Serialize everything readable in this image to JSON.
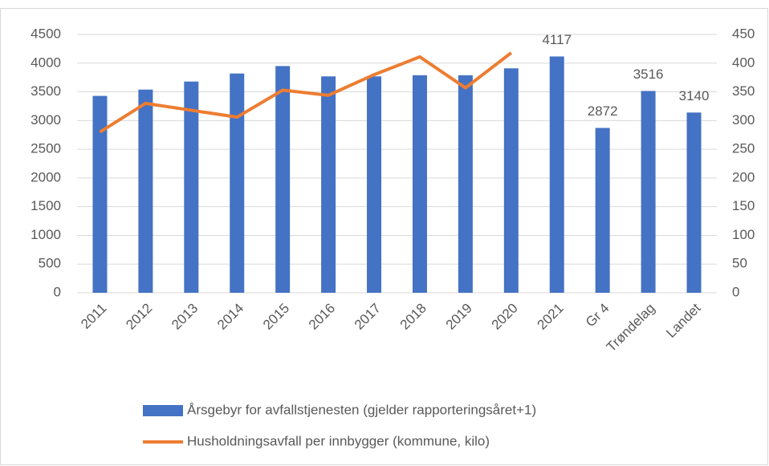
{
  "chart_data": {
    "type": "bar-line",
    "categories": [
      "2011",
      "2012",
      "2013",
      "2014",
      "2015",
      "2016",
      "2017",
      "2018",
      "2019",
      "2020",
      "2021",
      "Gr 4",
      "Trøndelag",
      "Landet"
    ],
    "series": [
      {
        "name": "Årsgebyr for avfallstjenesten (gjelder rapporteringsåret+1)",
        "type": "bar",
        "color": "#4472c4",
        "values": [
          3430,
          3540,
          3680,
          3820,
          3950,
          3770,
          3770,
          3790,
          3790,
          3910,
          4117,
          2872,
          3516,
          3140
        ],
        "value_labels": [
          null,
          null,
          null,
          null,
          null,
          null,
          null,
          null,
          null,
          null,
          "4117",
          "2872",
          "3516",
          "3140"
        ]
      },
      {
        "name": "Husholdningsavfall per innbygger (kommune, kilo)",
        "type": "line",
        "color": "#ed7d31",
        "axis": "y2",
        "values": [
          280,
          330,
          318,
          306,
          353,
          344,
          380,
          411,
          357,
          418,
          null,
          null,
          null,
          null
        ]
      }
    ],
    "ylim": [
      0,
      4500
    ],
    "yticks": [
      0,
      500,
      1000,
      1500,
      2000,
      2500,
      3000,
      3500,
      4000,
      4500
    ],
    "y2lim": [
      0,
      450
    ],
    "y2ticks": [
      0,
      50,
      100,
      150,
      200,
      250,
      300,
      350,
      400,
      450
    ],
    "grid": true,
    "legend": "bottom"
  }
}
